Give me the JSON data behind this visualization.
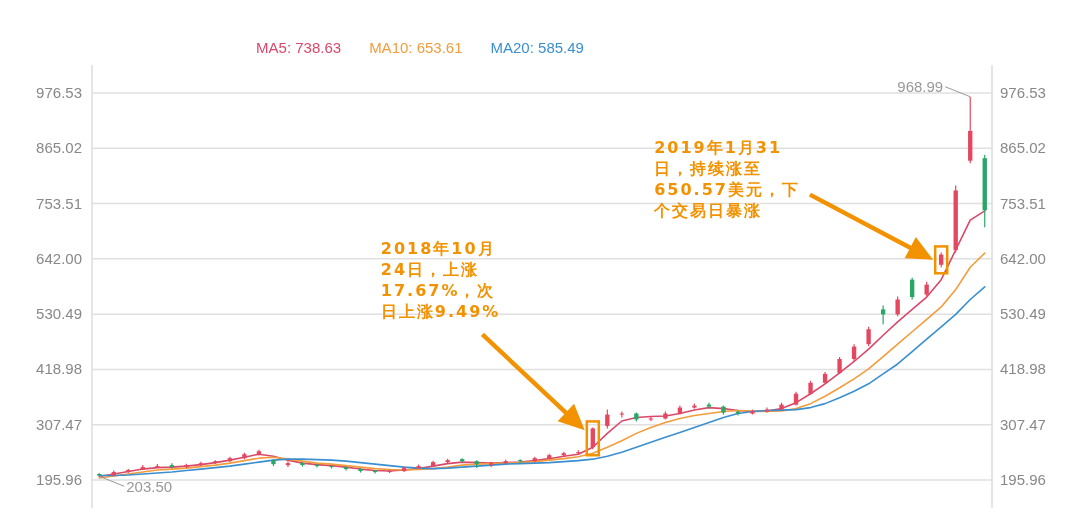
{
  "chart_data": {
    "type": "candlestick",
    "categories": [
      null,
      null,
      null,
      null,
      null,
      null,
      null,
      null,
      null,
      null,
      null,
      null,
      null,
      null,
      null,
      null,
      null,
      null,
      null,
      null,
      null,
      null,
      null,
      null,
      null,
      null,
      null,
      null,
      null,
      null,
      null,
      null,
      null,
      null,
      null,
      null,
      null,
      null,
      null,
      null,
      null,
      null,
      null,
      null,
      null,
      null,
      null,
      null,
      null,
      null,
      null,
      null,
      null,
      null,
      null,
      null,
      null,
      null,
      null,
      null,
      null,
      null
    ],
    "ohlc": [
      [
        208,
        210,
        203.5,
        205
      ],
      [
        205,
        215,
        203,
        212
      ],
      [
        212,
        218,
        210,
        216
      ],
      [
        218,
        226,
        216,
        222
      ],
      [
        222,
        228,
        220,
        224
      ],
      [
        226,
        230,
        219,
        222
      ],
      [
        222,
        229,
        220,
        226
      ],
      [
        226,
        233,
        224,
        230
      ],
      [
        230,
        236,
        228,
        234
      ],
      [
        234,
        243,
        232,
        240
      ],
      [
        240,
        251,
        238,
        248
      ],
      [
        248,
        257,
        246,
        254
      ],
      [
        236,
        238,
        224,
        228
      ],
      [
        226,
        234,
        222,
        230
      ],
      [
        230,
        232,
        223,
        226
      ],
      [
        227,
        229,
        221,
        224
      ],
      [
        224,
        226,
        219,
        222
      ],
      [
        222,
        224,
        215,
        218
      ],
      [
        218,
        220,
        211,
        214
      ],
      [
        215,
        216,
        209,
        212
      ],
      [
        212,
        217,
        210,
        214
      ],
      [
        214,
        223,
        212,
        220
      ],
      [
        220,
        227,
        218,
        224
      ],
      [
        224,
        235,
        222,
        232
      ],
      [
        232,
        239,
        230,
        236
      ],
      [
        238,
        240,
        232,
        234
      ],
      [
        234,
        236,
        220,
        228
      ],
      [
        226,
        233,
        222,
        230
      ],
      [
        230,
        237,
        228,
        234
      ],
      [
        236,
        238,
        231,
        234
      ],
      [
        234,
        243,
        232,
        240
      ],
      [
        240,
        249,
        238,
        246
      ],
      [
        246,
        253,
        244,
        250
      ],
      [
        250,
        256,
        248,
        252
      ],
      [
        262,
        302,
        258,
        300
      ],
      [
        305,
        338,
        300,
        328
      ],
      [
        328,
        334,
        322,
        330
      ],
      [
        330,
        332,
        314,
        318
      ],
      [
        318,
        324,
        315,
        320
      ],
      [
        320,
        334,
        318,
        330
      ],
      [
        330,
        346,
        328,
        342
      ],
      [
        342,
        350,
        340,
        346
      ],
      [
        348,
        352,
        340,
        344
      ],
      [
        344,
        346,
        328,
        332
      ],
      [
        334,
        336,
        326,
        330
      ],
      [
        330,
        338,
        328,
        334
      ],
      [
        334,
        342,
        332,
        338
      ],
      [
        338,
        352,
        336,
        348
      ],
      [
        348,
        374,
        346,
        370
      ],
      [
        370,
        396,
        368,
        392
      ],
      [
        392,
        414,
        390,
        410
      ],
      [
        412,
        444,
        410,
        440
      ],
      [
        440,
        470,
        436,
        465
      ],
      [
        470,
        505,
        466,
        500
      ],
      [
        540,
        548,
        510,
        530
      ],
      [
        530,
        566,
        526,
        560
      ],
      [
        600,
        604,
        560,
        565
      ],
      [
        570,
        596,
        566,
        590
      ],
      [
        630,
        655,
        625,
        650.57
      ],
      [
        660,
        790,
        655,
        780
      ],
      [
        840,
        968.99,
        835,
        900
      ],
      [
        845,
        852,
        706,
        740
      ]
    ],
    "colors": [
      "#2ba667",
      "#e5475f",
      "#e5475f",
      "#e5475f",
      "#e5475f",
      "#2ba667",
      "#e5475f",
      "#e5475f",
      "#e5475f",
      "#e5475f",
      "#e5475f",
      "#e5475f",
      "#2ba667",
      "#e5475f",
      "#2ba667",
      "#2ba667",
      "#2ba667",
      "#2ba667",
      "#2ba667",
      "#2ba667",
      "#e5475f",
      "#e5475f",
      "#e5475f",
      "#e5475f",
      "#e5475f",
      "#2ba667",
      "#2ba667",
      "#e5475f",
      "#e5475f",
      "#2ba667",
      "#e5475f",
      "#e5475f",
      "#e5475f",
      "#e5475f",
      "#e5475f",
      "#e5475f",
      "#e5475f",
      "#2ba667",
      "#e5475f",
      "#e5475f",
      "#e5475f",
      "#e5475f",
      "#2ba667",
      "#2ba667",
      "#2ba667",
      "#e5475f",
      "#e5475f",
      "#e5475f",
      "#e5475f",
      "#e5475f",
      "#e5475f",
      "#e5475f",
      "#e5475f",
      "#e5475f",
      "#2ba667",
      "#e5475f",
      "#2ba667",
      "#e5475f",
      "#e5475f",
      "#e5475f",
      "#e5475f",
      "#2ba667"
    ],
    "series": [
      {
        "name": "MA5: 738.63",
        "type": "line",
        "color": "#d9486a",
        "values": [
          203,
          208,
          213,
          218,
          221,
          222,
          224,
          227,
          231,
          236,
          242,
          248,
          244,
          236,
          230,
          227,
          225,
          222,
          218,
          215,
          214,
          216,
          219,
          224,
          229,
          232,
          231,
          230,
          231,
          232,
          235,
          239,
          244,
          248,
          262,
          290,
          315,
          322,
          324,
          325,
          330,
          337,
          342,
          340,
          336,
          334,
          335,
          340,
          352,
          370,
          390,
          412,
          435,
          460,
          488,
          515,
          540,
          565,
          600,
          660,
          720,
          738.63
        ]
      },
      {
        "name": "MA10: 653.61",
        "type": "line",
        "color": "#f39c3c",
        "values": [
          200,
          204,
          208,
          212,
          216,
          218,
          220,
          223,
          226,
          230,
          235,
          240,
          242,
          238,
          234,
          230,
          228,
          225,
          222,
          219,
          217,
          216,
          217,
          219,
          222,
          226,
          228,
          229,
          230,
          231,
          233,
          236,
          239,
          243,
          250,
          262,
          275,
          290,
          302,
          312,
          320,
          326,
          330,
          334,
          336,
          335,
          334,
          335,
          340,
          350,
          365,
          382,
          400,
          420,
          445,
          470,
          495,
          520,
          545,
          580,
          625,
          653.61
        ]
      },
      {
        "name": "MA20: 585.49",
        "type": "line",
        "color": "#3a8fd0",
        "values": [
          205,
          205,
          206,
          208,
          210,
          212,
          215,
          218,
          221,
          224,
          228,
          232,
          236,
          238,
          238,
          237,
          236,
          234,
          231,
          228,
          225,
          222,
          220,
          219,
          220,
          222,
          224,
          226,
          228,
          229,
          230,
          231,
          233,
          235,
          238,
          244,
          252,
          262,
          272,
          282,
          292,
          302,
          312,
          322,
          330,
          334,
          336,
          337,
          338,
          342,
          350,
          362,
          375,
          390,
          410,
          430,
          455,
          480,
          505,
          530,
          560,
          585.49
        ]
      }
    ],
    "ylim": [
      139.5,
      1033
    ],
    "yticks": [
      195.96,
      307.47,
      418.98,
      530.49,
      {
        "value": 642,
        "label": "642.00"
      },
      753.51,
      865.02,
      976.53
    ],
    "y2lim": [
      139.5,
      1033
    ],
    "y2ticks": [
      195.96,
      307.47,
      418.98,
      530.49,
      {
        "value": 642,
        "label": "642.00"
      },
      753.51,
      865.02,
      976.53
    ],
    "grid": "y",
    "legend": "top",
    "annotations": [
      "968.99",
      "203.50",
      "2018年10月24日，上涨17.67%，次日上涨9.49%",
      "2019年1月31日，持续涨至650.57美元，下个交易日暴涨"
    ]
  }
}
